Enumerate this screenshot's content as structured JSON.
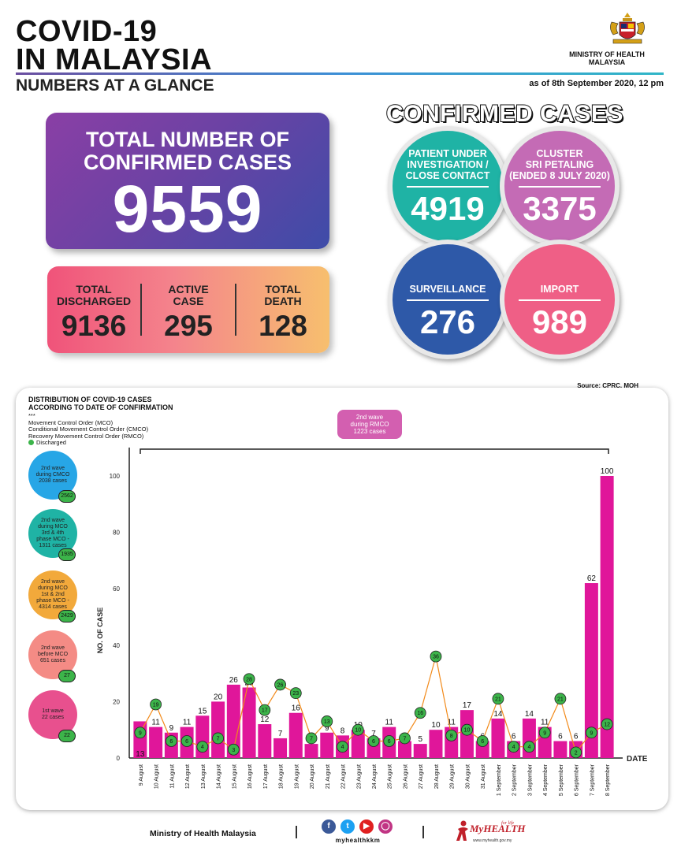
{
  "header": {
    "title_line1": "COVID-19",
    "title_line2": "IN MALAYSIA",
    "subtitle": "NUMBERS AT A GLANCE",
    "ministry": "MINISTRY OF HEALTH\nMALAYSIA",
    "as_of": "as of 8th September 2020, 12 pm"
  },
  "total": {
    "label": "TOTAL NUMBER OF\nCONFIRMED CASES",
    "value": "9559"
  },
  "stats": [
    {
      "label": "TOTAL\nDISCHARGED",
      "value": "9136"
    },
    {
      "label": "ACTIVE\nCASE",
      "value": "295"
    },
    {
      "label": "TOTAL\nDEATH",
      "value": "128"
    }
  ],
  "confirmed": {
    "title": "CONFIRMED CASES",
    "bubbles": [
      {
        "label": "PATIENT UNDER\nINVESTIGATION /\nCLOSE CONTACT",
        "value": "4919",
        "color": "#1fb3a5"
      },
      {
        "label": "CLUSTER\nSRI PETALING\n(ENDED 8 JULY 2020)",
        "value": "3375",
        "color": "#c46bb5"
      },
      {
        "label": "SURVEILLANCE",
        "value": "276",
        "color": "#2e59a8"
      },
      {
        "label": "IMPORT",
        "value": "989",
        "color": "#ef5f86"
      }
    ]
  },
  "source": "Source: CPRC, MOH",
  "distribution": {
    "title": "DISTRIBUTION OF COVID-19 CASES\nACCORDING TO DATE OF CONFIRMATION",
    "stars": "***",
    "legend": [
      "Movement Control Order (MCO)",
      "Conditional Movement Control Order (CMCO)",
      "Recovery Movement Control Order (RMCO)"
    ],
    "discharged_label": "Discharged",
    "rmco_box": "2nd wave\nduring RMCO\n1223 cases"
  },
  "waves": [
    {
      "label": "2nd wave\nduring CMCO\n2038 cases",
      "badge": "2562",
      "color": "#27a6e6"
    },
    {
      "label": "2nd wave\nduring MCO\n3rd & 4th\nphase MCO -\n1311 cases",
      "badge": "1935",
      "color": "#1fb3a5"
    },
    {
      "label": "2nd wave\nduring MCO\n1st & 2nd\nphase MCO -\n4314 cases",
      "badge": "2429",
      "color": "#f2a93b"
    },
    {
      "label": "2nd wave\nbefore MCO\n651 cases",
      "badge": "27",
      "color": "#f48b85"
    },
    {
      "label": "1st wave\n22 cases",
      "badge": "22",
      "color": "#e8508e"
    }
  ],
  "chart_data": {
    "type": "bar",
    "title": "DISTRIBUTION OF COVID-19 CASES ACCORDING TO DATE OF CONFIRMATION",
    "xlabel": "DATE",
    "ylabel": "NO. OF CASE",
    "ylim": [
      0,
      110
    ],
    "yticks": [
      0,
      20,
      40,
      60,
      80,
      100
    ],
    "categories": [
      "9 August",
      "10 August",
      "11 August",
      "12 August",
      "13 August",
      "14 August",
      "15 August",
      "16 August",
      "17 August",
      "18 August",
      "19 August",
      "20 August",
      "21 August",
      "22 August",
      "23 August",
      "24 August",
      "25 August",
      "26 August",
      "27 August",
      "28 August",
      "29 August",
      "30 August",
      "31 August",
      "1 September",
      "2 September",
      "3 September",
      "4 September",
      "5 September",
      "6 September",
      "7 September",
      "8 September"
    ],
    "series": [
      {
        "values": [
          13,
          11,
          9,
          11,
          15,
          20,
          26,
          25,
          12,
          7,
          16,
          5,
          9,
          8,
          10,
          7,
          11,
          6,
          5,
          10,
          11,
          17,
          6,
          14,
          6,
          14,
          11,
          6,
          6,
          62,
          100
        ],
        "color": "#e0169a"
      },
      {
        "name": "Discharged",
        "values": [
          9,
          19,
          6,
          6,
          4,
          7,
          3,
          28,
          17,
          26,
          23,
          7,
          13,
          4,
          10,
          6,
          6,
          7,
          16,
          36,
          8,
          10,
          6,
          21,
          4,
          4,
          9,
          21,
          2,
          9,
          12
        ],
        "color": "#3cb44a"
      }
    ],
    "grid": false,
    "legend": "top-left"
  },
  "footer": {
    "ministry": "Ministry of Health Malaysia",
    "social_handle": "myhealthkkm",
    "social_icons": [
      "facebook-icon",
      "twitter-icon",
      "youtube-icon",
      "instagram-icon"
    ],
    "myhealth_name": "MyHEALTH",
    "myhealth_tag": "for life",
    "myhealth_url": "www.myhealth.gov.my"
  }
}
